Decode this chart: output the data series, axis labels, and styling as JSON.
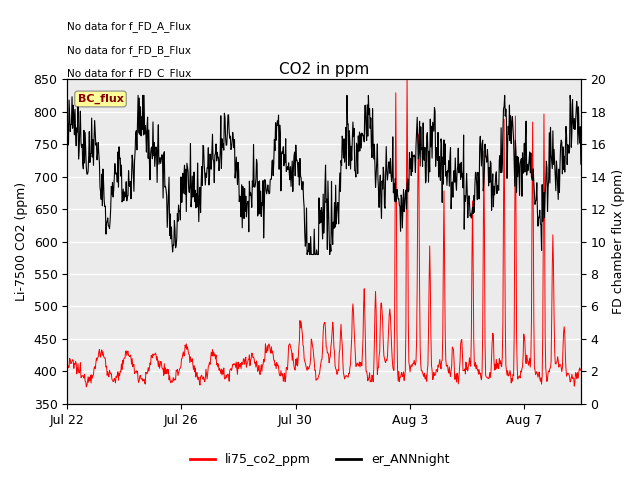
{
  "title": "CO2 in ppm",
  "ylabel_left": "Li-7500 CO2 (ppm)",
  "ylabel_right": "FD chamber flux (ppm)",
  "ylim_left": [
    350,
    850
  ],
  "ylim_right": [
    0,
    20
  ],
  "yticks_left": [
    350,
    400,
    450,
    500,
    550,
    600,
    650,
    700,
    750,
    800,
    850
  ],
  "yticks_right": [
    0,
    2,
    4,
    6,
    8,
    10,
    12,
    14,
    16,
    18,
    20
  ],
  "xticklabels": [
    "Jul 22",
    "Jul 26",
    "Jul 30",
    "Aug 3",
    "Aug 7"
  ],
  "xtick_positions": [
    0,
    4,
    8,
    12,
    16
  ],
  "legend_labels": [
    "li75_co2_ppm",
    "er_ANNnight"
  ],
  "legend_colors": [
    "red",
    "black"
  ],
  "annotations": [
    "No data for f_FD_A_Flux",
    "No data for f_FD_B_Flux",
    "No data for f_FD_C_Flux"
  ],
  "bc_flux_box_color": "#ffff99",
  "bc_flux_text_color": "darkred",
  "plot_bg_color": "#ebebeb",
  "grid_color": "#ffffff",
  "n_days": 18,
  "n_points": 864,
  "figsize": [
    6.4,
    4.8
  ],
  "dpi": 100
}
